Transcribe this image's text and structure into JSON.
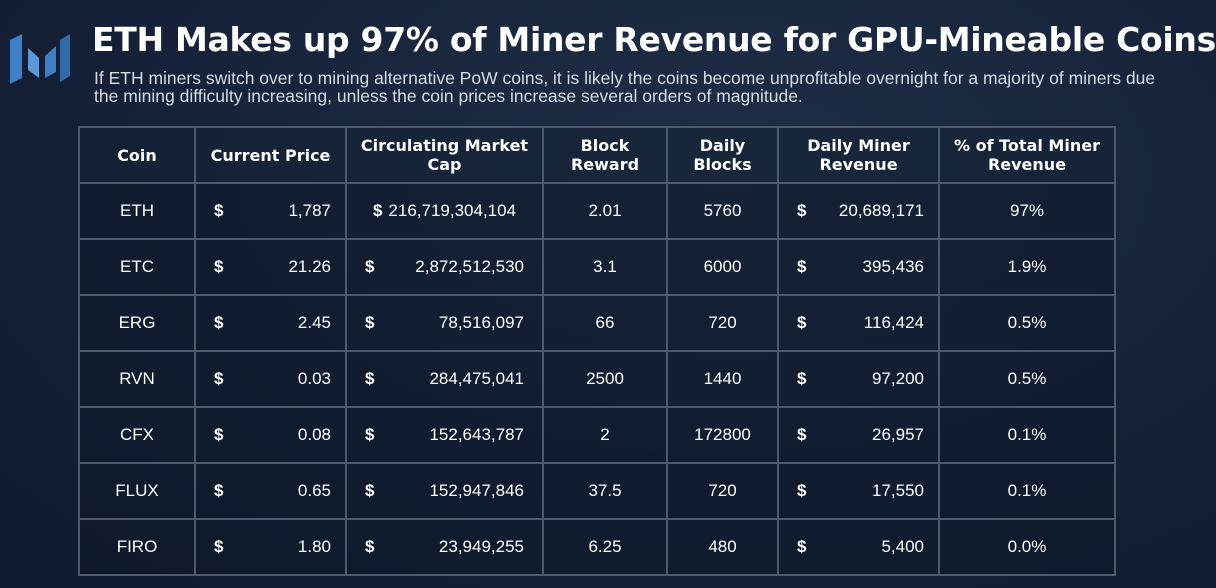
{
  "title": "ETH Makes up 97% of Miner Revenue for GPU-Mineable Coins",
  "subtitle": "If ETH miners switch over to mining alternative PoW coins, it is likely the coins become unprofitable overnight for a majority of miners due the mining difficulty increasing, unless the coin prices increase several orders of magnitude.",
  "colors": {
    "background": "#16223a",
    "border": "#4d5a6d",
    "logo": "#3d7fc4"
  },
  "table": {
    "headers": {
      "coin": "Coin",
      "price": "Current Price",
      "mcap_line1": "Circulating Market",
      "mcap_line2": "Cap",
      "reward_line1": "Block",
      "reward_line2": "Reward",
      "blocks_line1": "Daily",
      "blocks_line2": "Blocks",
      "revenue_line1": "Daily Miner",
      "revenue_line2": "Revenue",
      "share_line1": "% of Total Miner",
      "share_line2": "Revenue"
    },
    "currency_symbol": "$",
    "rows": [
      {
        "coin": "ETH",
        "price": "1,787",
        "mcap": "216,719,304,104",
        "reward": "2.01",
        "blocks": "5760",
        "revenue": "20,689,171",
        "share": "97%"
      },
      {
        "coin": "ETC",
        "price": "21.26",
        "mcap": "2,872,512,530",
        "reward": "3.1",
        "blocks": "6000",
        "revenue": "395,436",
        "share": "1.9%"
      },
      {
        "coin": "ERG",
        "price": "2.45",
        "mcap": "78,516,097",
        "reward": "66",
        "blocks": "720",
        "revenue": "116,424",
        "share": "0.5%"
      },
      {
        "coin": "RVN",
        "price": "0.03",
        "mcap": "284,475,041",
        "reward": "2500",
        "blocks": "1440",
        "revenue": "97,200",
        "share": "0.5%"
      },
      {
        "coin": "CFX",
        "price": "0.08",
        "mcap": "152,643,787",
        "reward": "2",
        "blocks": "172800",
        "revenue": "26,957",
        "share": "0.1%"
      },
      {
        "coin": "FLUX",
        "price": "0.65",
        "mcap": "152,947,846",
        "reward": "37.5",
        "blocks": "720",
        "revenue": "17,550",
        "share": "0.1%"
      },
      {
        "coin": "FIRO",
        "price": "1.80",
        "mcap": "23,949,255",
        "reward": "6.25",
        "blocks": "480",
        "revenue": "5,400",
        "share": "0.0%"
      }
    ]
  }
}
